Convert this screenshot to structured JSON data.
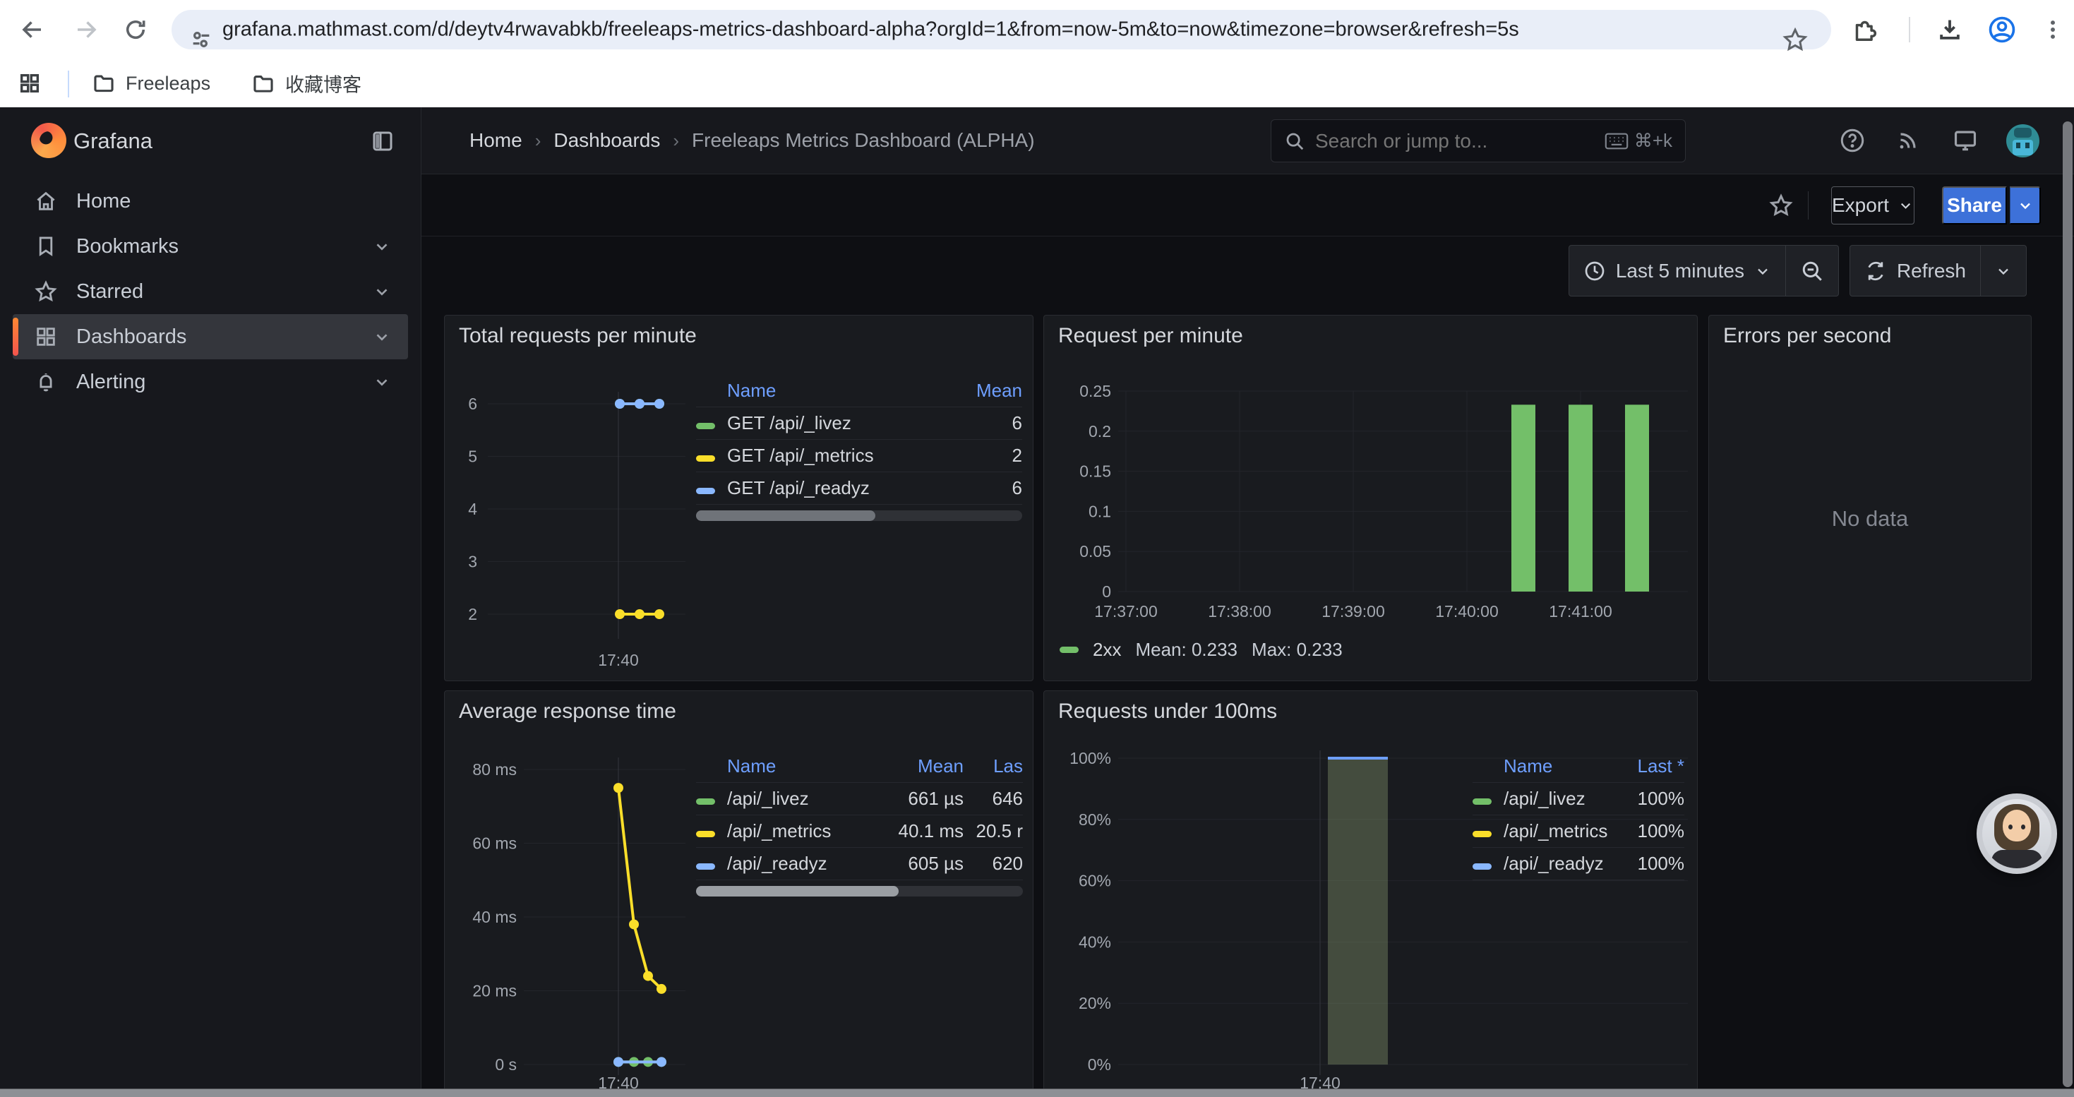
{
  "browser": {
    "url": "grafana.mathmast.com/d/deytv4rwavabkb/freeleaps-metrics-dashboard-alpha?orgId=1&from=now-5m&to=now&timezone=browser&refresh=5s",
    "bookmarks": [
      {
        "label": "Freeleaps"
      },
      {
        "label": "收藏博客"
      }
    ]
  },
  "sidebar": {
    "brand": "Grafana",
    "items": [
      {
        "label": "Home"
      },
      {
        "label": "Bookmarks"
      },
      {
        "label": "Starred"
      },
      {
        "label": "Dashboards"
      },
      {
        "label": "Alerting"
      }
    ]
  },
  "topnav": {
    "breadcrumbs": [
      "Home",
      "Dashboards",
      "Freeleaps Metrics Dashboard (ALPHA)"
    ],
    "search_placeholder": "Search or jump to...",
    "search_shortcut": "⌘+k"
  },
  "actions": {
    "export_label": "Export",
    "share_label": "Share"
  },
  "timebar": {
    "range_label": "Last 5 minutes",
    "refresh_label": "Refresh"
  },
  "panels": {
    "total_requests": {
      "title": "Total requests per minute",
      "legend_headers": [
        "Name",
        "Mean"
      ],
      "legend_rows": [
        {
          "name": "GET /api/_livez",
          "color": "#73BF69",
          "mean": "6"
        },
        {
          "name": "GET /api/_metrics",
          "color": "#FADE2A",
          "mean": "2"
        },
        {
          "name": "GET /api/_readyz",
          "color": "#8AB8FF",
          "mean": "6"
        }
      ],
      "scroll_thumb_pct": 55
    },
    "request_per_minute": {
      "title": "Request per minute",
      "legend": {
        "series": "2xx",
        "color": "#73BF69",
        "mean_text": "Mean: 0.233",
        "max_text": "Max: 0.233"
      }
    },
    "errors_per_second": {
      "title": "Errors per second",
      "no_data": "No data"
    },
    "avg_response_time": {
      "title": "Average response time",
      "legend_headers": [
        "Name",
        "Mean",
        "Las"
      ],
      "legend_rows": [
        {
          "name": "/api/_livez",
          "color": "#73BF69",
          "mean": "661 µs",
          "last": "646"
        },
        {
          "name": "/api/_metrics",
          "color": "#FADE2A",
          "mean": "40.1 ms",
          "last": "20.5 r"
        },
        {
          "name": "/api/_readyz",
          "color": "#8AB8FF",
          "mean": "605 µs",
          "last": "620"
        }
      ],
      "scroll_thumb_pct": 62
    },
    "under_100ms": {
      "title": "Requests under 100ms",
      "legend_headers": [
        "Name",
        "Last *"
      ],
      "legend_rows": [
        {
          "name": "/api/_livez",
          "color": "#73BF69",
          "last": "100%"
        },
        {
          "name": "/api/_metrics",
          "color": "#FADE2A",
          "last": "100%"
        },
        {
          "name": "/api/_readyz",
          "color": "#8AB8FF",
          "last": "100%"
        }
      ]
    }
  },
  "chart_data": [
    {
      "id": "total-requests-chart",
      "type": "line",
      "title": "Total requests per minute",
      "y_ticks": [
        6,
        5,
        4,
        3,
        2
      ],
      "y_tick_labels": [
        "6",
        "5",
        "4",
        "3",
        "2"
      ],
      "x_tick_label": "17:40",
      "grid": true,
      "legend_position": "right-table",
      "series": [
        {
          "name": "GET /api/_livez",
          "color": "#73BF69",
          "values": [
            6,
            6,
            6
          ]
        },
        {
          "name": "GET /api/_metrics",
          "color": "#FADE2A",
          "values": [
            2,
            2,
            2
          ]
        },
        {
          "name": "GET /api/_readyz",
          "color": "#8AB8FF",
          "values": [
            6,
            6,
            6
          ]
        }
      ]
    },
    {
      "id": "request-per-minute-chart",
      "type": "bar",
      "title": "Request per minute",
      "y_ticks": [
        0.25,
        0.2,
        0.15,
        0.1,
        0.05,
        0
      ],
      "y_tick_labels": [
        "0.25",
        "0.2",
        "0.15",
        "0.1",
        "0.05",
        "0"
      ],
      "x_tick_labels": [
        "17:37:00",
        "17:38:00",
        "17:39:00",
        "17:40:00",
        "17:41:00"
      ],
      "ylim": [
        0,
        0.257
      ],
      "grid": true,
      "legend_position": "bottom",
      "bar_color": "#73BF69",
      "bar_values": [
        0.233,
        0.233,
        0.233
      ],
      "series_name": "2xx",
      "mean": 0.233,
      "max": 0.233
    },
    {
      "id": "errors-per-second-chart",
      "type": "none",
      "title": "Errors per second",
      "message": "No data"
    },
    {
      "id": "avg-response-chart",
      "type": "line",
      "title": "Average response time",
      "y_ticks": [
        80,
        60,
        40,
        20,
        0
      ],
      "y_tick_labels": [
        "80 ms",
        "60 ms",
        "40 ms",
        "20 ms",
        "0 s"
      ],
      "x_tick_label": "17:40",
      "grid": true,
      "legend_position": "right-table",
      "series": [
        {
          "name": "/api/_livez",
          "color": "#73BF69",
          "values": [
            0.7,
            0.7,
            0.7,
            0.7
          ]
        },
        {
          "name": "/api/_metrics",
          "color": "#FADE2A",
          "values": [
            75,
            38,
            24,
            20.5
          ]
        },
        {
          "name": "/api/_readyz",
          "color": "#8AB8FF",
          "values": [
            0.7,
            0.7,
            0.7,
            0.7
          ]
        }
      ]
    },
    {
      "id": "under-100ms-chart",
      "type": "bar",
      "title": "Requests under 100ms",
      "y_ticks": [
        100,
        80,
        60,
        40,
        20,
        0
      ],
      "y_tick_labels": [
        "100%",
        "80%",
        "60%",
        "40%",
        "20%",
        "0%"
      ],
      "x_tick_label": "17:40",
      "grid": true,
      "legend_position": "right-table",
      "bar": {
        "value": 100,
        "fill": "rgba(150,170,120,0.35)",
        "top_color": "#6E9FFF"
      }
    }
  ]
}
